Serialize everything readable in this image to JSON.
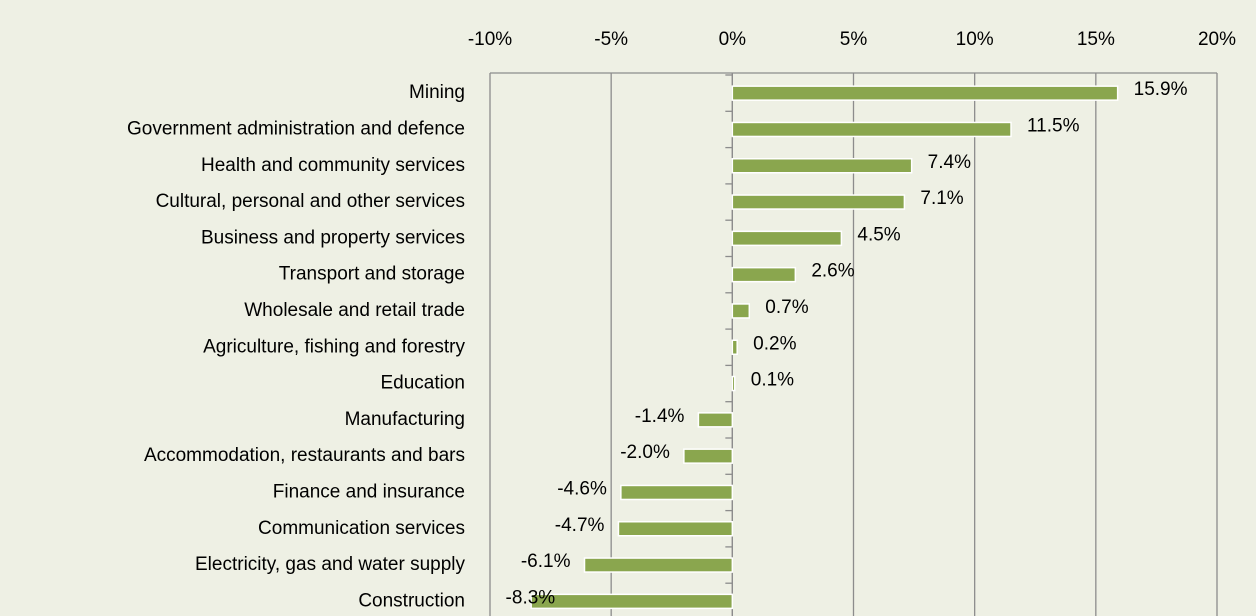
{
  "chart_data": {
    "type": "bar",
    "orientation": "horizontal",
    "categories": [
      "Mining",
      "Government administration and defence",
      "Health and community services",
      "Cultural, personal and other services",
      "Business and property services",
      "Transport and storage",
      "Wholesale and retail trade",
      "Agriculture, fishing and forestry",
      "Education",
      "Manufacturing",
      "Accommodation, restaurants and bars",
      "Finance and insurance",
      "Communication services",
      "Electricity, gas and water supply",
      "Construction"
    ],
    "values": [
      15.9,
      11.5,
      7.4,
      7.1,
      4.5,
      2.6,
      0.7,
      0.2,
      0.1,
      -1.4,
      -2.0,
      -4.6,
      -4.7,
      -6.1,
      -8.3
    ],
    "value_labels": [
      "15.9%",
      "11.5%",
      "7.4%",
      "7.1%",
      "4.5%",
      "2.6%",
      "0.7%",
      "0.2%",
      "0.1%",
      "-1.4%",
      "-2.0%",
      "-4.6%",
      "-4.7%",
      "-6.1%",
      "-8.3%"
    ],
    "color": "#8aa64e",
    "xlim": [
      -10,
      20
    ],
    "xticks": [
      {
        "value": -10,
        "label": "-10%"
      },
      {
        "value": -5,
        "label": "-5%"
      },
      {
        "value": 0,
        "label": "0%"
      },
      {
        "value": 5,
        "label": "5%"
      },
      {
        "value": 10,
        "label": "10%"
      },
      {
        "value": 15,
        "label": "15%"
      },
      {
        "value": 20,
        "label": "20%"
      }
    ],
    "grid": true
  }
}
